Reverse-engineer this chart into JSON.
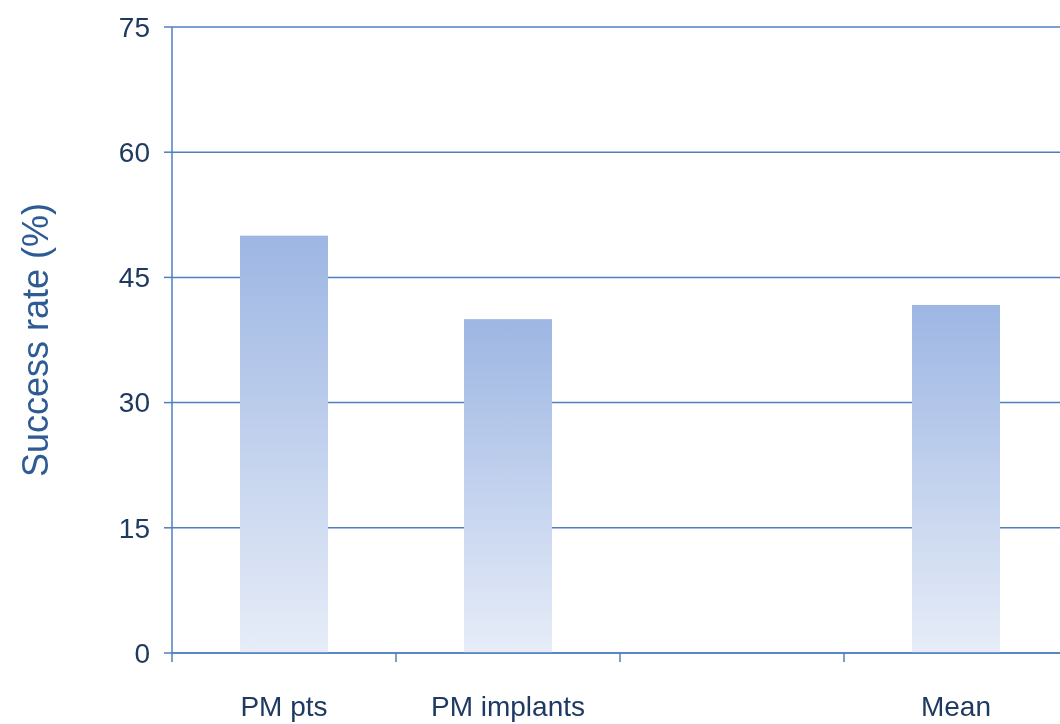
{
  "chart_data": {
    "type": "bar",
    "ylabel": "Success rate (%)",
    "categories": [
      "PM pts",
      "PM implants",
      null,
      "Mean"
    ],
    "values": [
      50,
      40,
      null,
      41.7
    ],
    "color": "#9db6e3",
    "ylim": [
      0,
      75
    ],
    "yticks": [
      0,
      15,
      30,
      45,
      60,
      75
    ],
    "grid": "y"
  }
}
